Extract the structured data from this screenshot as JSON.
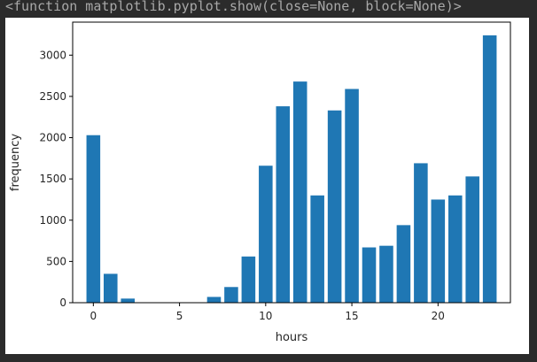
{
  "output_text": "<function matplotlib.pyplot.show(close=None, block=None)>",
  "chart_data": {
    "type": "bar",
    "title": "",
    "xlabel": "hours",
    "ylabel": "frequency",
    "x": [
      0,
      1,
      2,
      3,
      4,
      5,
      6,
      7,
      8,
      9,
      10,
      11,
      12,
      13,
      14,
      15,
      16,
      17,
      18,
      19,
      20,
      21,
      22,
      23
    ],
    "values": [
      2030,
      350,
      50,
      0,
      0,
      0,
      0,
      70,
      190,
      560,
      1660,
      2380,
      2680,
      1300,
      2330,
      2590,
      670,
      690,
      940,
      1690,
      1250,
      1300,
      1530,
      3240
    ],
    "xlim": [
      -1.2,
      24.2
    ],
    "ylim": [
      0,
      3400
    ],
    "xticks": [
      0,
      5,
      10,
      15,
      20
    ],
    "yticks": [
      0,
      500,
      1000,
      1500,
      2000,
      2500,
      3000
    ],
    "bar_color": "#1f77b4",
    "grid": false,
    "legend": "none"
  }
}
